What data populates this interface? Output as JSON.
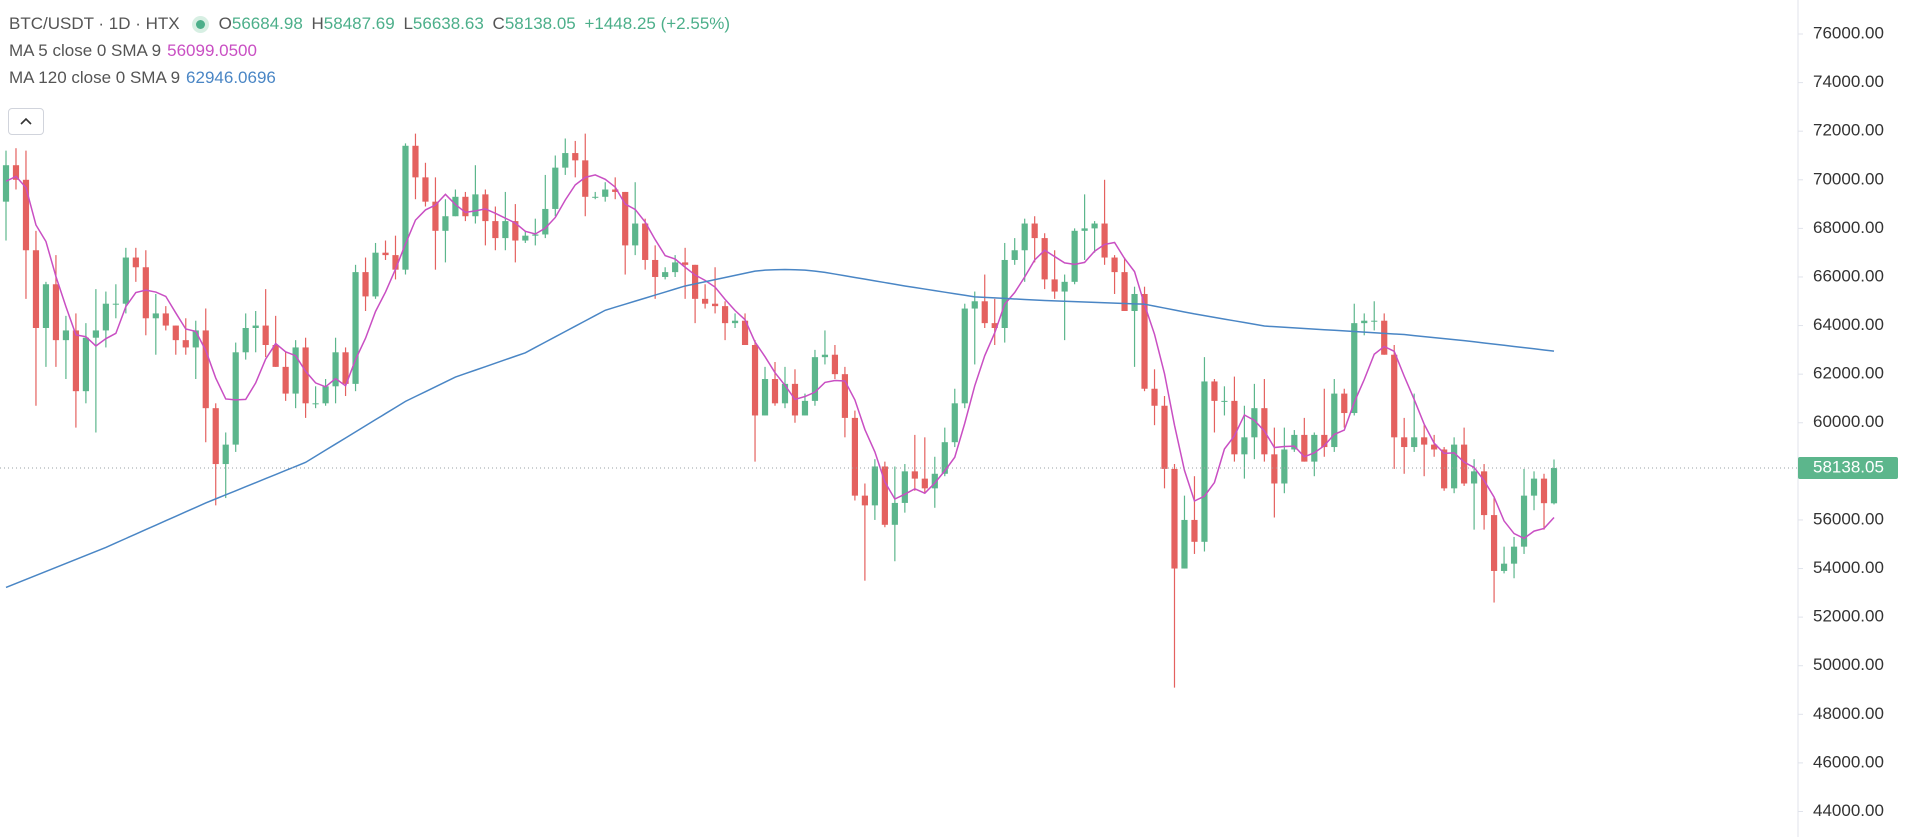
{
  "chart_data": {
    "type": "candlestick",
    "title": "BTC/USDT · 1D · HTX",
    "ohlc_labels": [
      "O",
      "H",
      "L",
      "C"
    ],
    "change": {
      "value": 1448.25,
      "label": "+1448.25"
    },
    "change_percent": {
      "value": 2.55,
      "label": "(+2.55%)"
    },
    "up_color": "#5cb68c",
    "down_color": "#e4615f",
    "candles": [
      [
        69100,
        71200,
        67500,
        70600
      ],
      [
        70600,
        71300,
        69600,
        70000
      ],
      [
        70000,
        71200,
        65100,
        67100
      ],
      [
        67100,
        67900,
        60700,
        63900
      ],
      [
        63900,
        65800,
        62300,
        65700
      ],
      [
        65700,
        66900,
        62300,
        63400
      ],
      [
        63400,
        64400,
        61800,
        63800
      ],
      [
        63800,
        64500,
        59800,
        61300
      ],
      [
        61300,
        64100,
        60800,
        63500
      ],
      [
        63500,
        65500,
        59600,
        63800
      ],
      [
        63800,
        65400,
        63100,
        64900
      ],
      [
        64900,
        65700,
        64300,
        64900
      ],
      [
        64900,
        67200,
        64500,
        66800
      ],
      [
        66800,
        67200,
        65800,
        66400
      ],
      [
        66400,
        67100,
        63600,
        64300
      ],
      [
        64300,
        65300,
        62800,
        64500
      ],
      [
        64500,
        64800,
        63800,
        64000
      ],
      [
        64000,
        64000,
        62800,
        63400
      ],
      [
        63400,
        64300,
        62800,
        63100
      ],
      [
        63100,
        64200,
        61800,
        63800
      ],
      [
        63800,
        64700,
        59200,
        60600
      ],
      [
        60600,
        60800,
        56600,
        58300
      ],
      [
        58300,
        59600,
        56900,
        59100
      ],
      [
        59100,
        63300,
        58800,
        62900
      ],
      [
        62900,
        64500,
        62600,
        63900
      ],
      [
        63900,
        64600,
        62900,
        64000
      ],
      [
        64000,
        65500,
        62700,
        63200
      ],
      [
        63200,
        64400,
        62300,
        62300
      ],
      [
        62300,
        62900,
        60900,
        61200
      ],
      [
        61200,
        63400,
        60600,
        63100
      ],
      [
        63100,
        63500,
        60200,
        60800
      ],
      [
        60800,
        61500,
        60600,
        60800
      ],
      [
        60800,
        61800,
        60700,
        61500
      ],
      [
        61500,
        63500,
        60800,
        62900
      ],
      [
        62900,
        63100,
        61100,
        61600
      ],
      [
        61600,
        66500,
        61300,
        66200
      ],
      [
        66200,
        66800,
        64600,
        65200
      ],
      [
        65200,
        67400,
        65100,
        67000
      ],
      [
        67000,
        67500,
        66700,
        66900
      ],
      [
        66900,
        67700,
        65900,
        66300
      ],
      [
        66300,
        71500,
        66100,
        71400
      ],
      [
        71400,
        71900,
        69200,
        70100
      ],
      [
        70100,
        70700,
        68900,
        69100
      ],
      [
        69100,
        70100,
        66300,
        67900
      ],
      [
        67900,
        69200,
        66600,
        68500
      ],
      [
        68500,
        69600,
        68500,
        69300
      ],
      [
        69300,
        69500,
        68300,
        68500
      ],
      [
        68500,
        70600,
        68200,
        69400
      ],
      [
        69400,
        69600,
        67300,
        68300
      ],
      [
        68300,
        68900,
        67100,
        67600
      ],
      [
        67600,
        69500,
        67100,
        68300
      ],
      [
        68300,
        69000,
        66600,
        67500
      ],
      [
        67500,
        67900,
        67400,
        67700
      ],
      [
        67700,
        68400,
        67300,
        67750
      ],
      [
        67750,
        70200,
        67600,
        68800
      ],
      [
        68800,
        71000,
        68500,
        70500
      ],
      [
        70500,
        71700,
        70200,
        71100
      ],
      [
        71100,
        71600,
        70100,
        70800
      ],
      [
        70800,
        71900,
        68500,
        69300
      ],
      [
        69300,
        69500,
        69200,
        69300
      ],
      [
        69300,
        69900,
        69100,
        69600
      ],
      [
        69600,
        70100,
        69200,
        69500
      ],
      [
        69500,
        69500,
        66100,
        67300
      ],
      [
        67300,
        69900,
        66900,
        68200
      ],
      [
        68200,
        68400,
        66300,
        66700
      ],
      [
        66700,
        67300,
        65100,
        66000
      ],
      [
        66000,
        66400,
        65900,
        66200
      ],
      [
        66200,
        66900,
        66000,
        66600
      ],
      [
        66600,
        67200,
        65100,
        66500
      ],
      [
        66500,
        66500,
        64100,
        65100
      ],
      [
        65100,
        65700,
        64700,
        64900
      ],
      [
        64900,
        66400,
        64500,
        64800
      ],
      [
        64800,
        65000,
        63400,
        64100
      ],
      [
        64100,
        64500,
        63900,
        64200
      ],
      [
        64200,
        64500,
        63200,
        63200
      ],
      [
        63200,
        63400,
        58400,
        60300
      ],
      [
        60300,
        62300,
        60300,
        61800
      ],
      [
        61800,
        62500,
        60700,
        60800
      ],
      [
        60800,
        62300,
        60600,
        61600
      ],
      [
        61600,
        62200,
        60000,
        60300
      ],
      [
        60300,
        61200,
        60300,
        60900
      ],
      [
        60900,
        63000,
        60700,
        62700
      ],
      [
        62700,
        63800,
        62400,
        62800
      ],
      [
        62800,
        63200,
        61800,
        62000
      ],
      [
        62000,
        62300,
        59400,
        60200
      ],
      [
        60200,
        60500,
        56800,
        57000
      ],
      [
        57000,
        57500,
        53500,
        56600
      ],
      [
        56600,
        58500,
        56000,
        58200
      ],
      [
        58200,
        58400,
        55700,
        55800
      ],
      [
        55800,
        58200,
        54300,
        56700
      ],
      [
        56700,
        58300,
        56300,
        58000
      ],
      [
        58000,
        59500,
        57200,
        57700
      ],
      [
        57700,
        59400,
        57100,
        57300
      ],
      [
        57300,
        58600,
        56500,
        57900
      ],
      [
        57900,
        59800,
        57800,
        59200
      ],
      [
        59200,
        61400,
        59000,
        60800
      ],
      [
        60800,
        64900,
        60600,
        64700
      ],
      [
        64700,
        65400,
        62400,
        65000
      ],
      [
        65000,
        66100,
        63900,
        64100
      ],
      [
        64100,
        65100,
        63200,
        63900
      ],
      [
        63900,
        67400,
        63300,
        66700
      ],
      [
        66700,
        67600,
        66500,
        67100
      ],
      [
        67100,
        68400,
        65800,
        68200
      ],
      [
        68200,
        68500,
        66600,
        67600
      ],
      [
        67600,
        67800,
        65500,
        65900
      ],
      [
        65900,
        67100,
        65100,
        65400
      ],
      [
        65400,
        66100,
        63400,
        65800
      ],
      [
        65800,
        68000,
        65700,
        67900
      ],
      [
        67900,
        69400,
        66700,
        68000
      ],
      [
        68000,
        68300,
        67000,
        68200
      ],
      [
        68200,
        70000,
        66500,
        66800
      ],
      [
        66800,
        66900,
        65300,
        66200
      ],
      [
        66200,
        66800,
        64600,
        64600
      ],
      [
        64600,
        65600,
        62300,
        65300
      ],
      [
        65300,
        65600,
        61300,
        61400
      ],
      [
        61400,
        62200,
        59900,
        60700
      ],
      [
        60700,
        61100,
        57300,
        58100
      ],
      [
        58100,
        58300,
        49100,
        54000
      ],
      [
        54000,
        57000,
        54000,
        56000
      ],
      [
        56000,
        57800,
        54600,
        55100
      ],
      [
        55100,
        62700,
        54700,
        61700
      ],
      [
        61700,
        61800,
        59600,
        60900
      ],
      [
        60900,
        61500,
        60300,
        60900
      ],
      [
        60900,
        61900,
        58400,
        58700
      ],
      [
        58700,
        60700,
        57700,
        59400
      ],
      [
        59400,
        61600,
        58500,
        60600
      ],
      [
        60600,
        61800,
        58400,
        58700
      ],
      [
        58700,
        59800,
        56100,
        57500
      ],
      [
        57500,
        59800,
        57100,
        58900
      ],
      [
        58900,
        59700,
        58800,
        59500
      ],
      [
        59500,
        60200,
        58400,
        58400
      ],
      [
        58400,
        59600,
        57800,
        59500
      ],
      [
        59500,
        61400,
        58600,
        59000
      ],
      [
        59000,
        61800,
        58800,
        61200
      ],
      [
        61200,
        61400,
        59800,
        60400
      ],
      [
        60400,
        64900,
        60300,
        64100
      ],
      [
        64100,
        64500,
        63600,
        64200
      ],
      [
        64200,
        65000,
        63800,
        64200
      ],
      [
        64200,
        64500,
        62800,
        62800
      ],
      [
        62800,
        63200,
        58100,
        59400
      ],
      [
        59400,
        60200,
        57900,
        59000
      ],
      [
        59000,
        61200,
        58800,
        59400
      ],
      [
        59400,
        59900,
        57800,
        59100
      ],
      [
        59100,
        59500,
        58600,
        58900
      ],
      [
        58900,
        59000,
        57200,
        57300
      ],
      [
        57300,
        59400,
        57100,
        59100
      ],
      [
        59100,
        59800,
        57400,
        57500
      ],
      [
        57500,
        58500,
        55600,
        58000
      ],
      [
        58000,
        58300,
        55600,
        56200
      ],
      [
        56200,
        56900,
        52600,
        53900
      ],
      [
        53900,
        54900,
        53800,
        54200
      ],
      [
        54200,
        55300,
        53600,
        54900
      ],
      [
        54900,
        58100,
        54600,
        57000
      ],
      [
        57000,
        58000,
        56400,
        57700
      ],
      [
        57700,
        57900,
        55600,
        56690
      ],
      [
        56684.98,
        58487.69,
        56638.63,
        58138.05
      ]
    ],
    "series": [
      {
        "name": "MA 5 close 0 SMA 9",
        "color": "#c94fc3",
        "value_label": "56099.0500",
        "values": [
          69940,
          70140,
          69680,
          68140,
          67460,
          66020,
          64780,
          63620,
          63540,
          63160,
          63460,
          63680,
          64780,
          65360,
          65460,
          65380,
          65200,
          64520,
          63860,
          63760,
          62980,
          61840,
          60980,
          60940,
          60960,
          61640,
          62620,
          63260,
          62920,
          62760,
          62120,
          61640,
          61480,
          61820,
          61520,
          62600,
          63480,
          64580,
          65380,
          66320,
          67360,
          68340,
          68760,
          68960,
          69400,
          68980,
          68660,
          68720,
          68800,
          68620,
          68420,
          68220,
          67880,
          67770,
          68010,
          68450,
          69170,
          69790,
          70100,
          70200,
          70020,
          69700,
          69000,
          68780,
          68260,
          67540,
          66880,
          66740,
          66400,
          66080,
          65860,
          65580,
          65080,
          64620,
          64240,
          63320,
          62720,
          62060,
          61540,
          60960,
          61080,
          61260,
          61660,
          61740,
          61720,
          60940,
          59720,
          58800,
          57560,
          56860,
          57060,
          57280,
          57100,
          57520,
          58020,
          58580,
          59980,
          61520,
          62760,
          63700,
          64880,
          65360,
          66000,
          66700,
          67100,
          66840,
          66580,
          66520,
          66600,
          67060,
          67340,
          67420,
          66760,
          66220,
          64860,
          63640,
          62020,
          59900,
          58040,
          56780,
          56980,
          57540,
          58920,
          59460,
          60320,
          60100,
          59660,
          58980,
          59020,
          59040,
          58600,
          58760,
          59060,
          59520,
          59700,
          60840,
          61780,
          62820,
          63140,
          62940,
          61920,
          60960,
          59940,
          59160,
          58740,
          58760,
          58380,
          58160,
          57620,
          56940,
          55960,
          55440,
          55240,
          55540,
          55650,
          56099.05
        ]
      },
      {
        "name": "MA 120 close 0 SMA 9",
        "color": "#4a86c5",
        "value_label": "62946.0696",
        "values": [
          53220,
          53385,
          53550,
          53715,
          53880,
          54045,
          54210,
          54375,
          54540,
          54705,
          54870,
          55053,
          55236,
          55419,
          55602,
          55785,
          55968,
          56151,
          56334,
          56517,
          56700,
          56867,
          57034,
          57201,
          57368,
          57535,
          57702,
          57869,
          58036,
          58203,
          58370,
          58621,
          58872,
          59123,
          59374,
          59625,
          59876,
          60127,
          60378,
          60629,
          60880,
          61080,
          61280,
          61480,
          61680,
          61880,
          62023,
          62166,
          62309,
          62452,
          62595,
          62738,
          62880,
          63099,
          63318,
          63537,
          63756,
          63975,
          64194,
          64413,
          64630,
          64755,
          64880,
          65005,
          65130,
          65255,
          65380,
          65505,
          65630,
          65717,
          65804,
          65891,
          65978,
          66065,
          66152,
          66240,
          66280,
          66300,
          66310,
          66300,
          66280,
          66240,
          66190,
          66120,
          66050,
          65980,
          65910,
          65840,
          65770,
          65700,
          65630,
          65566,
          65502,
          65438,
          65374,
          65310,
          65246,
          65180,
          65159,
          65138,
          65117,
          65096,
          65075,
          65054,
          65030,
          65015,
          65000,
          64985,
          64970,
          64955,
          64940,
          64925,
          64910,
          64895,
          64880,
          64800,
          64720,
          64640,
          64560,
          64480,
          64409,
          64338,
          64267,
          64196,
          64125,
          64054,
          63980,
          63955,
          63930,
          63905,
          63880,
          63855,
          63830,
          63805,
          63780,
          63755,
          63730,
          63705,
          63680,
          63655,
          63630,
          63588,
          63546,
          63504,
          63462,
          63420,
          63380,
          63332,
          63284,
          63236,
          63188,
          63140,
          63092,
          63044,
          62996,
          62946.0696
        ]
      }
    ],
    "ylim": [
      42950,
      77400
    ],
    "yticks": [
      {
        "value": 76000,
        "label": "76000.00"
      },
      {
        "value": 74000,
        "label": "74000.00"
      },
      {
        "value": 72000,
        "label": "72000.00"
      },
      {
        "value": 70000,
        "label": "70000.00"
      },
      {
        "value": 68000,
        "label": "68000.00"
      },
      {
        "value": 66000,
        "label": "66000.00"
      },
      {
        "value": 64000,
        "label": "64000.00"
      },
      {
        "value": 62000,
        "label": "62000.00"
      },
      {
        "value": 60000,
        "label": "60000.00"
      },
      {
        "value": 58000,
        "label": "58000.00"
      },
      {
        "value": 56000,
        "label": "56000.00"
      },
      {
        "value": 54000,
        "label": "54000.00"
      },
      {
        "value": 52000,
        "label": "52000.00"
      },
      {
        "value": 50000,
        "label": "50000.00"
      },
      {
        "value": 48000,
        "label": "48000.00"
      },
      {
        "value": 46000,
        "label": "46000.00"
      },
      {
        "value": 44000,
        "label": "44000.00"
      }
    ]
  }
}
